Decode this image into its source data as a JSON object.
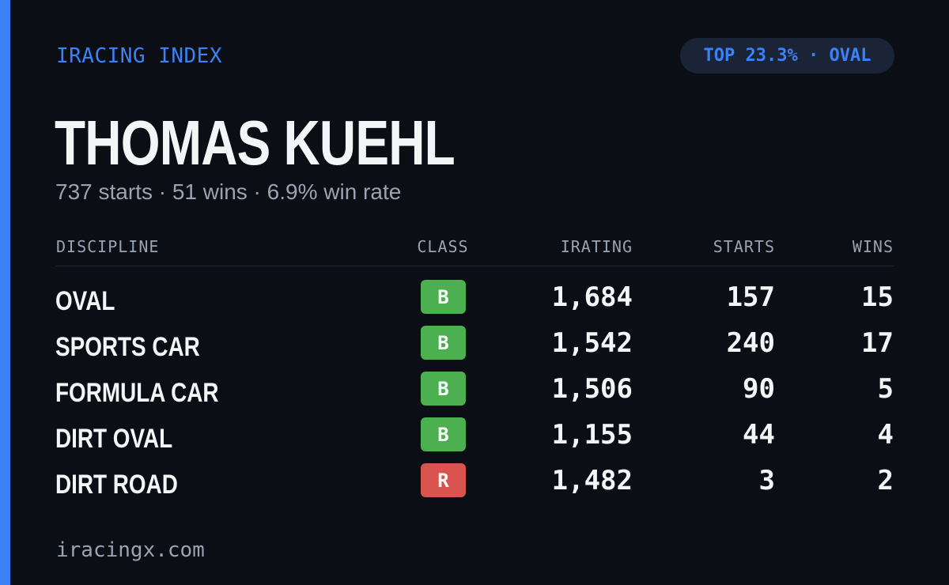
{
  "colors": {
    "accent": "#3b82f6",
    "class_b": "#4caf50",
    "class_r": "#d9534f"
  },
  "header": {
    "brand": "IRACING INDEX",
    "rank_pill": "TOP 23.3% · OVAL"
  },
  "profile": {
    "name": "THOMAS KUEHL",
    "summary": "737 starts · 51 wins · 6.9% win rate"
  },
  "table": {
    "columns": {
      "discipline": "DISCIPLINE",
      "class": "CLASS",
      "irating": "IRATING",
      "starts": "STARTS",
      "wins": "WINS"
    },
    "rows": [
      {
        "discipline": "OVAL",
        "class": "B",
        "class_color": "#4caf50",
        "irating": "1,684",
        "starts": "157",
        "wins": "15"
      },
      {
        "discipline": "SPORTS CAR",
        "class": "B",
        "class_color": "#4caf50",
        "irating": "1,542",
        "starts": "240",
        "wins": "17"
      },
      {
        "discipline": "FORMULA CAR",
        "class": "B",
        "class_color": "#4caf50",
        "irating": "1,506",
        "starts": "90",
        "wins": "5"
      },
      {
        "discipline": "DIRT OVAL",
        "class": "B",
        "class_color": "#4caf50",
        "irating": "1,155",
        "starts": "44",
        "wins": "4"
      },
      {
        "discipline": "DIRT ROAD",
        "class": "R",
        "class_color": "#d9534f",
        "irating": "1,482",
        "starts": "3",
        "wins": "2"
      }
    ]
  },
  "footer": {
    "site": "iracingx.com"
  }
}
